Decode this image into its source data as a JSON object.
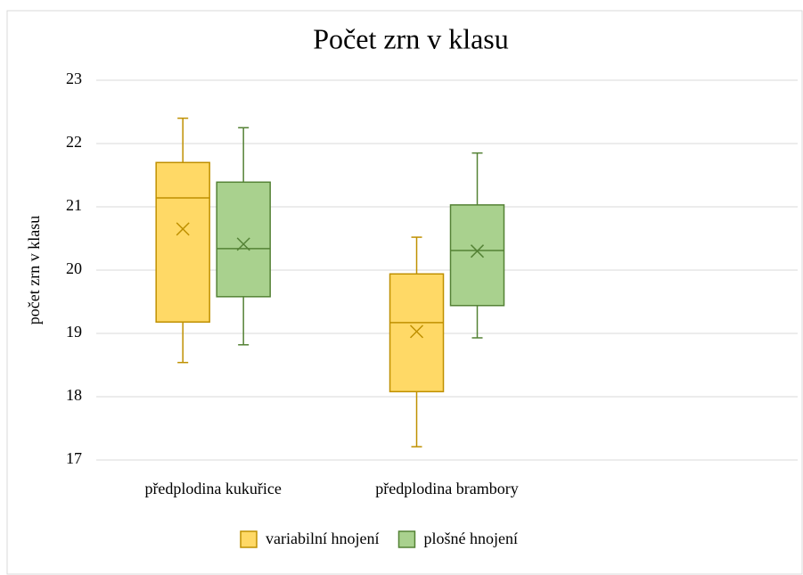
{
  "chart_data": {
    "type": "box",
    "title": "Počet zrn v klasu",
    "y_label": "počet zrn v klasu",
    "categories": [
      "předplodina kukuřice",
      "předplodina brambory",
      null
    ],
    "series": [
      {
        "name": "variabilní hnojení",
        "color": "#ffd966",
        "edge_color": "#bf9000",
        "min": [
          18.54,
          17.21,
          null
        ],
        "q1": [
          19.18,
          18.08,
          null
        ],
        "median": [
          21.14,
          19.17,
          null
        ],
        "q3": [
          21.7,
          19.94,
          null
        ],
        "max": [
          22.4,
          20.52,
          null
        ],
        "mean": [
          20.65,
          19.03,
          null
        ]
      },
      {
        "name": "plošné hnojení",
        "color": "#a9d18e",
        "edge_color": "#548235",
        "min": [
          18.82,
          18.93,
          null
        ],
        "q1": [
          19.58,
          19.44,
          null
        ],
        "median": [
          20.34,
          20.31,
          null
        ],
        "q3": [
          21.39,
          21.03,
          null
        ],
        "max": [
          22.25,
          21.85,
          null
        ],
        "mean": [
          20.41,
          20.3,
          null
        ]
      }
    ],
    "ylim": [
      17,
      23
    ],
    "yticks": [
      17,
      18,
      19,
      20,
      21,
      22,
      23
    ],
    "grid": true,
    "legend": "bottom"
  }
}
